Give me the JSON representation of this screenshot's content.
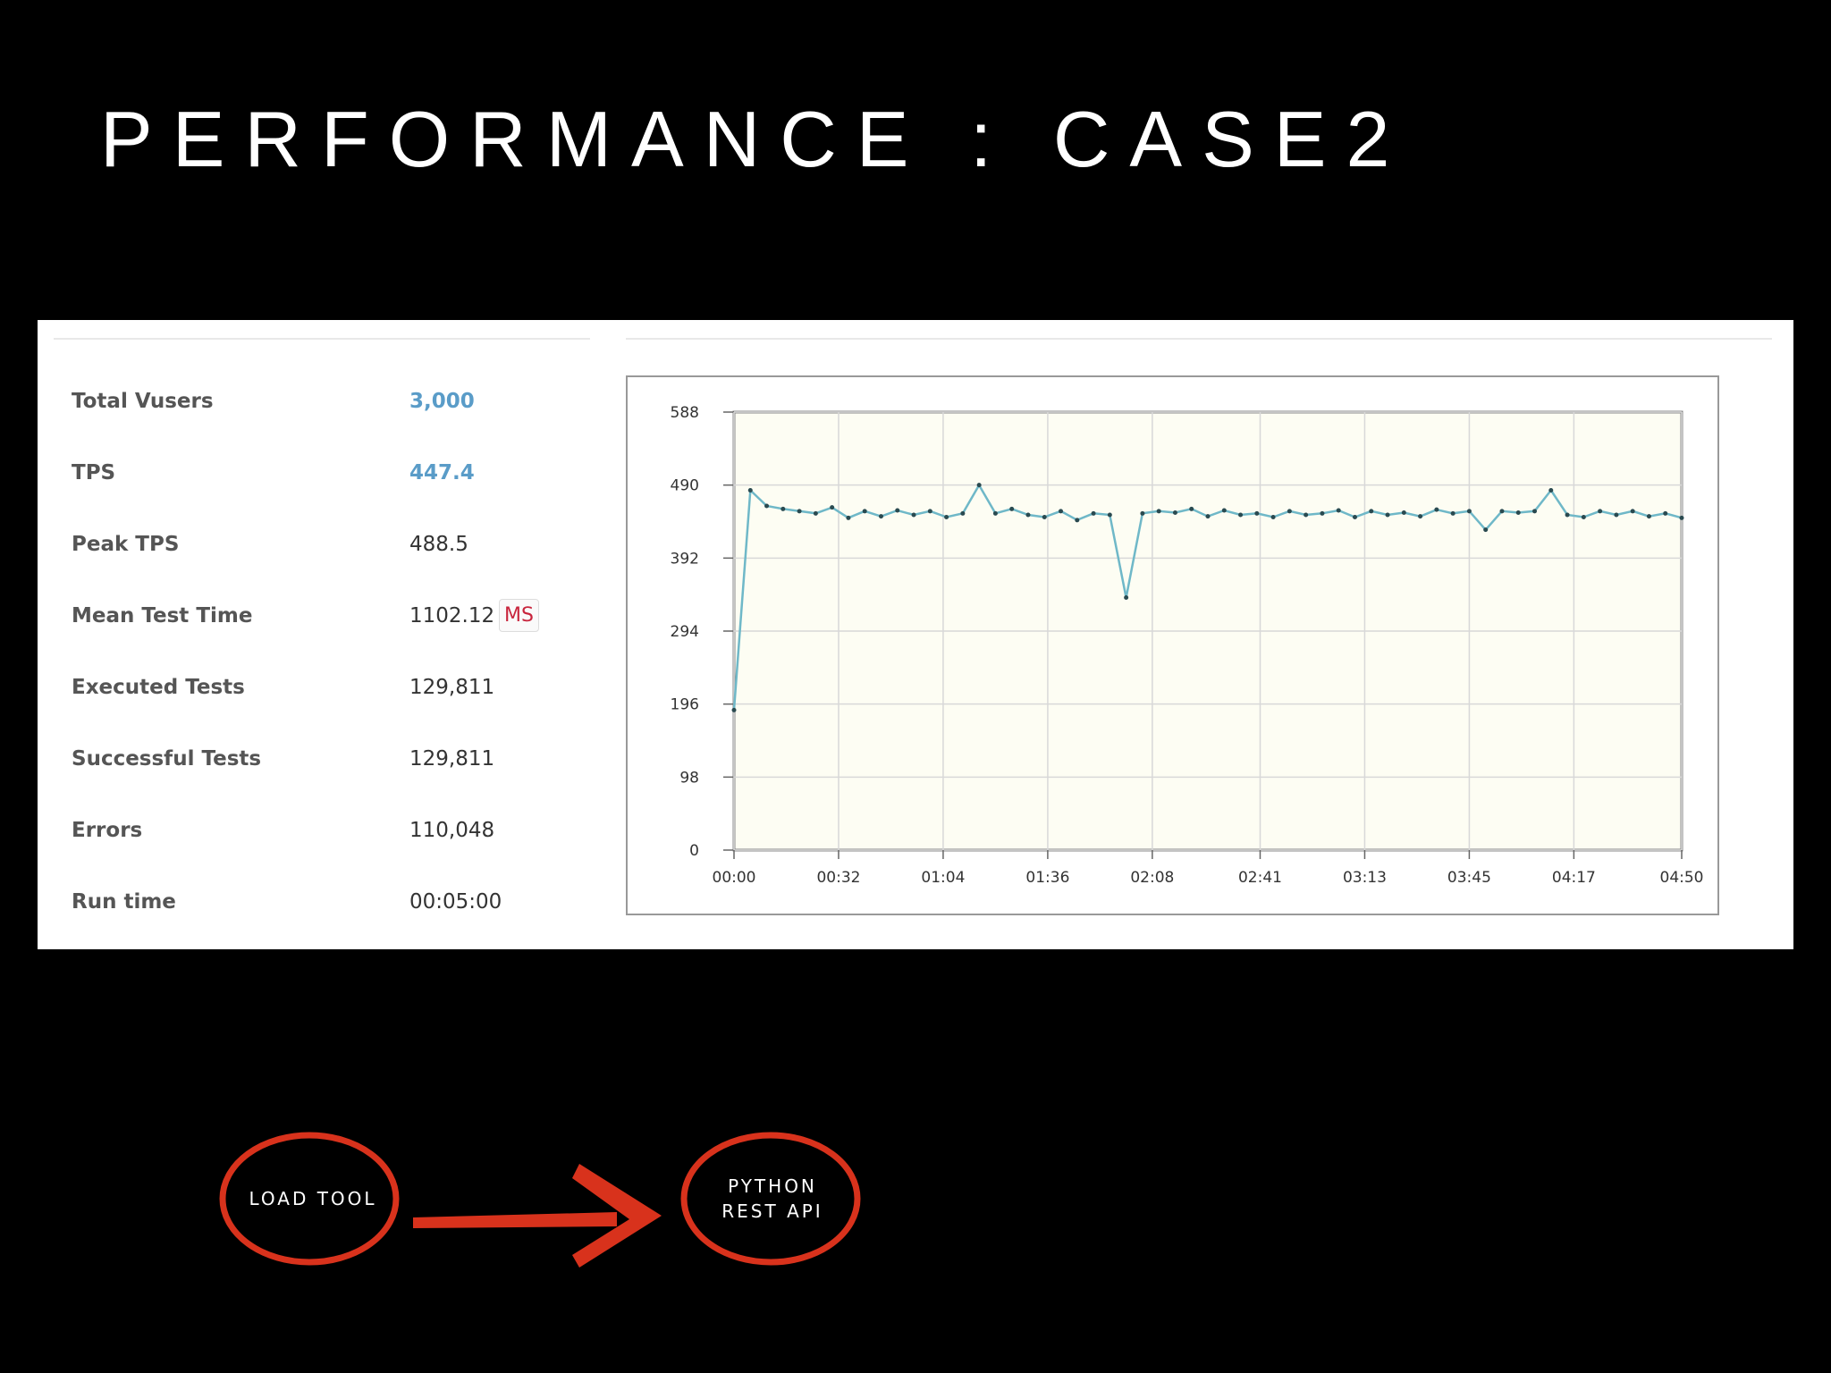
{
  "title": "PERFORMANCE : CASE2",
  "stats": [
    {
      "label": "Total Vusers",
      "value": "3,000"
    },
    {
      "label": "TPS",
      "value": "447.4"
    },
    {
      "label": "Peak TPS",
      "value": "488.5"
    },
    {
      "label": "Mean Test Time",
      "value": "1102.12",
      "unit": "MS"
    },
    {
      "label": "Executed Tests",
      "value": "129,811"
    },
    {
      "label": "Successful Tests",
      "value": "129,811"
    },
    {
      "label": "Errors",
      "value": "110,048"
    },
    {
      "label": "Run time",
      "value": "00:05:00"
    }
  ],
  "chart_data": {
    "type": "line",
    "color": "#6fb8c8",
    "grid": true,
    "x": [
      0,
      5,
      10,
      15,
      20,
      25,
      30,
      35,
      40,
      45,
      50,
      55,
      60,
      65,
      70,
      75,
      80,
      85,
      90,
      95,
      100,
      105,
      110,
      115,
      120,
      125,
      130,
      135,
      140,
      145,
      150,
      155,
      160,
      165,
      170,
      175,
      180,
      185,
      190,
      195,
      200,
      205,
      210,
      215,
      220,
      225,
      230,
      235,
      240,
      245,
      250,
      255,
      260,
      265,
      270,
      275,
      280,
      285,
      290
    ],
    "values": [
      188,
      483,
      462,
      458,
      455,
      452,
      460,
      446,
      455,
      448,
      456,
      450,
      455,
      447,
      452,
      490,
      452,
      458,
      450,
      447,
      455,
      443,
      452,
      450,
      339,
      452,
      455,
      453,
      458,
      448,
      456,
      450,
      452,
      447,
      455,
      450,
      452,
      456,
      447,
      455,
      450,
      453,
      448,
      457,
      452,
      455,
      430,
      455,
      453,
      455,
      483,
      450,
      447,
      455,
      450,
      455,
      448,
      452,
      446
    ],
    "xlim": [
      0,
      290
    ],
    "xticks": [
      {
        "value": 0,
        "label": "00:00"
      },
      {
        "value": 32,
        "label": "00:32"
      },
      {
        "value": 64,
        "label": "01:04"
      },
      {
        "value": 96,
        "label": "01:36"
      },
      {
        "value": 128,
        "label": "02:08"
      },
      {
        "value": 161,
        "label": "02:41"
      },
      {
        "value": 193,
        "label": "03:13"
      },
      {
        "value": 225,
        "label": "03:45"
      },
      {
        "value": 257,
        "label": "04:17"
      },
      {
        "value": 290,
        "label": "04:50"
      }
    ],
    "ylim": [
      0,
      588
    ],
    "yticks": [
      0,
      98,
      196,
      294,
      392,
      490,
      588
    ]
  },
  "diagram": {
    "nodes": [
      {
        "label": "LOAD TOOL"
      },
      {
        "label": [
          "PYTHON",
          "REST API"
        ]
      }
    ]
  }
}
